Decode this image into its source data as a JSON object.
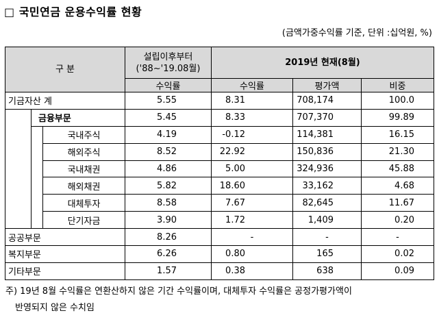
{
  "title": "□ 국민연금 운용수익률 현황",
  "unit_note": "(금액가중수익률 기준, 단위 :십억원, %)",
  "table": {
    "header": {
      "category": "구 분",
      "since": "설립이후부터",
      "since_period": "('88~'19.08월)",
      "current": "2019년 현재(8월)",
      "columns": [
        "수익률",
        "수익률",
        "평가액",
        "비중"
      ]
    },
    "total": {
      "label": "기금자산 계",
      "values": [
        "5.55",
        "8.31",
        "708,174",
        "100.0"
      ]
    },
    "financial": {
      "label": "금융부문",
      "values": [
        "5.45",
        "8.33",
        "707,370",
        "99.89"
      ],
      "items": [
        {
          "label": "국내주식",
          "values": [
            "4.19",
            "-0.12",
            "114,381",
            "16.15"
          ]
        },
        {
          "label": "해외주식",
          "values": [
            "8.52",
            "22.92",
            "150,836",
            "21.30"
          ]
        },
        {
          "label": "국내채권",
          "values": [
            "4.86",
            "5.00",
            "324,936",
            "45.88"
          ]
        },
        {
          "label": "해외채권",
          "values": [
            "5.82",
            "18.60",
            "33,162",
            "4.68"
          ]
        },
        {
          "label": "대체투자",
          "values": [
            "8.58",
            "7.67",
            "82,645",
            "11.67"
          ]
        },
        {
          "label": "단기자금",
          "values": [
            "3.90",
            "1.72",
            "1,409",
            "0.20"
          ]
        }
      ]
    },
    "others": [
      {
        "label": "공공부문",
        "values": [
          "8.26",
          "-",
          "-",
          "-"
        ]
      },
      {
        "label": "복지부문",
        "values": [
          "6.26",
          "0.80",
          "165",
          "0.02"
        ]
      },
      {
        "label": "기타부문",
        "values": [
          "1.57",
          "0.38",
          "638",
          "0.09"
        ]
      }
    ]
  },
  "footnote": [
    "주) 19년 8월 수익률은 연환산하지 않은 기간 수익률이며, 대체투자 수익률은 공정가평가액이",
    "반영되지 않은 수치임"
  ]
}
